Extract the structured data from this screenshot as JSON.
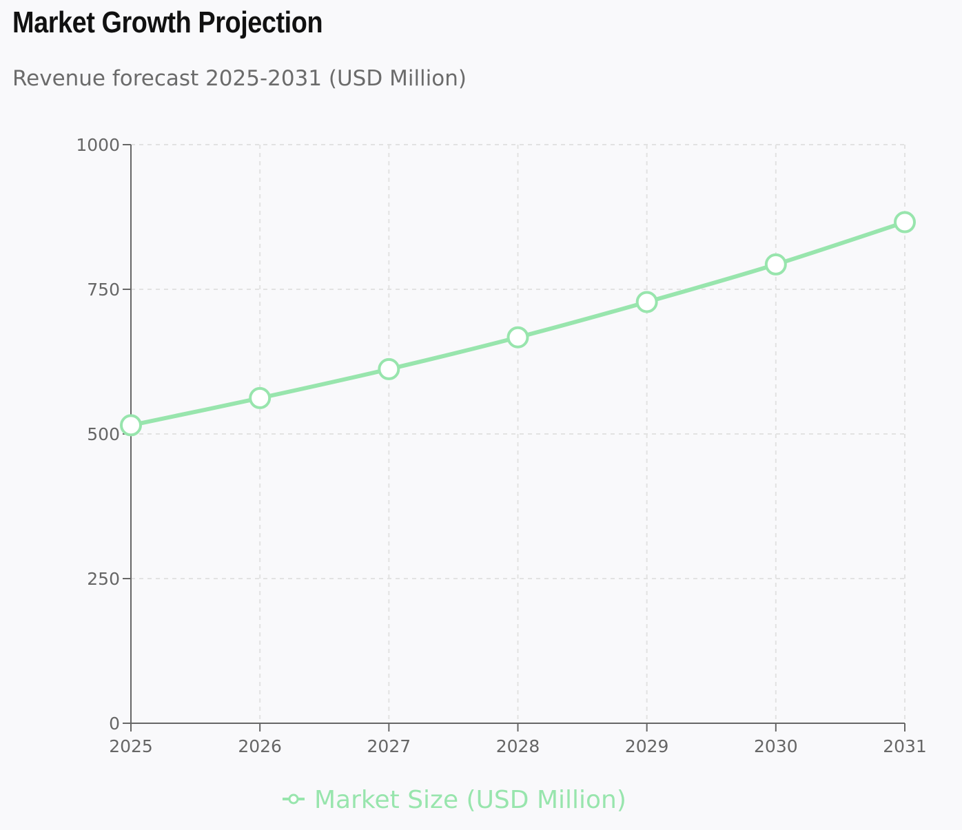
{
  "header": {
    "title": "Market Growth Projection",
    "subtitle": "Revenue forecast 2025-2031 (USD Million)"
  },
  "colors": {
    "background": "#f9f9fb",
    "series": "#98e5ad",
    "axis": "#666666",
    "grid": "#e2e2e2",
    "title": "#111111",
    "subtitle": "#6b6b6b"
  },
  "chart_data": {
    "type": "line",
    "title": "Market Growth Projection",
    "subtitle": "Revenue forecast 2025-2031 (USD Million)",
    "xlabel": "",
    "ylabel": "",
    "categories": [
      "2025",
      "2026",
      "2027",
      "2028",
      "2029",
      "2030",
      "2031"
    ],
    "series": [
      {
        "name": "Market Size (USD Million)",
        "values": [
          515,
          562,
          612,
          667,
          728,
          793,
          866
        ],
        "color": "#98e5ad"
      }
    ],
    "ylim": [
      0,
      1000
    ],
    "yticks": [
      "0",
      "250",
      "500",
      "750",
      "1000"
    ],
    "ytick_values": [
      0,
      250,
      500,
      750,
      1000
    ],
    "grid": true,
    "legend_position": "bottom-center"
  }
}
